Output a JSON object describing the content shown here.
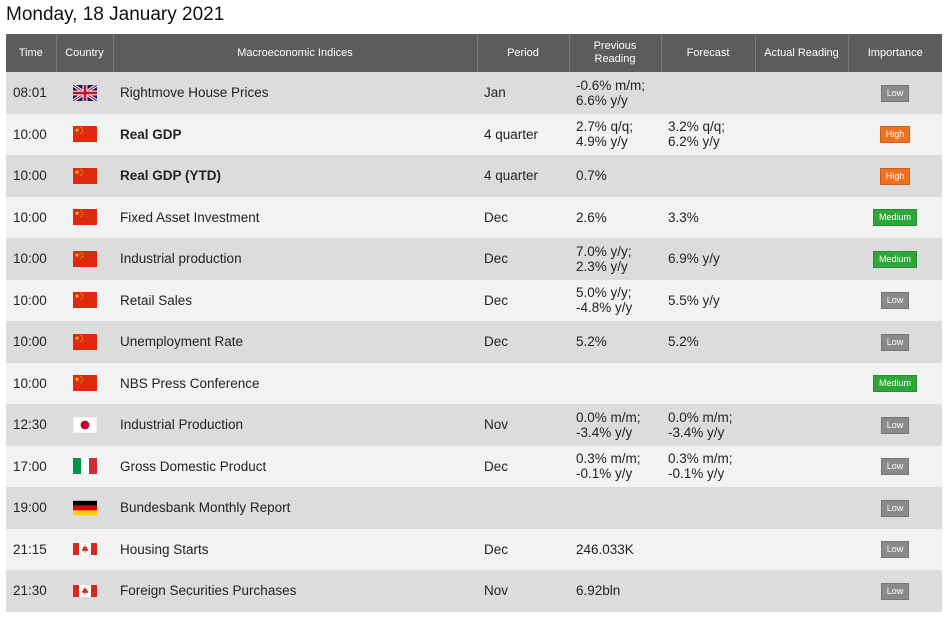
{
  "title": "Monday, 18 January 2021",
  "columns": {
    "time": "Time",
    "country": "Country",
    "indices": "Macroeconomic Indices",
    "period": "Period",
    "previous_line1": "Previous",
    "previous_line2": "Reading",
    "forecast": "Forecast",
    "actual": "Actual Reading",
    "importance": "Importance"
  },
  "colors": {
    "header_bg": "#5c5c5c",
    "row_odd": "#dcdcdc",
    "row_even": "#f2f2f2",
    "badge_low": "#8a8a8a",
    "badge_high": "#f07020",
    "badge_medium": "#2fa63a"
  },
  "rows": [
    {
      "time": "08:01",
      "flag": "uk-flag-icon",
      "indicator": "Rightmove House Prices",
      "bold": false,
      "period": "Jan",
      "previous": [
        "-0.6% m/m;",
        "6.6% y/y"
      ],
      "forecast": [],
      "actual": "",
      "importance": "Low",
      "level": "low"
    },
    {
      "time": "10:00",
      "flag": "china-flag-icon",
      "indicator": "Real GDP",
      "bold": true,
      "period": "4 quarter",
      "previous": [
        "2.7% q/q;",
        "4.9% y/y"
      ],
      "forecast": [
        "3.2% q/q;",
        "6.2% y/y"
      ],
      "actual": "",
      "importance": "High",
      "level": "high"
    },
    {
      "time": "10:00",
      "flag": "china-flag-icon",
      "indicator": "Real GDP (YTD)",
      "bold": true,
      "period": "4 quarter",
      "previous": [
        "0.7%"
      ],
      "forecast": [],
      "actual": "",
      "importance": "High",
      "level": "high"
    },
    {
      "time": "10:00",
      "flag": "china-flag-icon",
      "indicator": "Fixed Asset Investment",
      "bold": false,
      "period": "Dec",
      "previous": [
        "2.6%"
      ],
      "forecast": [
        "3.3%"
      ],
      "actual": "",
      "importance": "Medium",
      "level": "medium"
    },
    {
      "time": "10:00",
      "flag": "china-flag-icon",
      "indicator": "Industrial production",
      "bold": false,
      "period": "Dec",
      "previous": [
        "7.0% y/y;",
        "2.3% y/y"
      ],
      "forecast": [
        "6.9% y/y"
      ],
      "actual": "",
      "importance": "Medium",
      "level": "medium"
    },
    {
      "time": "10:00",
      "flag": "china-flag-icon",
      "indicator": "Retail Sales",
      "bold": false,
      "period": "Dec",
      "previous": [
        "5.0% y/y;",
        "-4.8% y/y"
      ],
      "forecast": [
        "5.5% y/y"
      ],
      "actual": "",
      "importance": "Low",
      "level": "low"
    },
    {
      "time": "10:00",
      "flag": "china-flag-icon",
      "indicator": "Unemployment Rate",
      "bold": false,
      "period": "Dec",
      "previous": [
        "5.2%"
      ],
      "forecast": [
        "5.2%"
      ],
      "actual": "",
      "importance": "Low",
      "level": "low"
    },
    {
      "time": "10:00",
      "flag": "china-flag-icon",
      "indicator": "NBS Press Conference",
      "bold": false,
      "period": "",
      "previous": [],
      "forecast": [],
      "actual": "",
      "importance": "Medium",
      "level": "medium"
    },
    {
      "time": "12:30",
      "flag": "japan-flag-icon",
      "indicator": "Industrial Production",
      "bold": false,
      "period": "Nov",
      "previous": [
        "0.0% m/m;",
        "-3.4% y/y"
      ],
      "forecast": [
        "0.0% m/m;",
        "-3.4% y/y"
      ],
      "actual": "",
      "importance": "Low",
      "level": "low"
    },
    {
      "time": "17:00",
      "flag": "italy-flag-icon",
      "indicator": "Gross Domestic Product",
      "bold": false,
      "period": "Dec",
      "previous": [
        "0.3% m/m;",
        "-0.1% y/y"
      ],
      "forecast": [
        "0.3% m/m;",
        "-0.1% y/y"
      ],
      "actual": "",
      "importance": "Low",
      "level": "low"
    },
    {
      "time": "19:00",
      "flag": "germany-flag-icon",
      "indicator": "Bundesbank Monthly Report",
      "bold": false,
      "period": "",
      "previous": [],
      "forecast": [],
      "actual": "",
      "importance": "Low",
      "level": "low"
    },
    {
      "time": "21:15",
      "flag": "canada-flag-icon",
      "indicator": "Housing Starts",
      "bold": false,
      "period": "Dec",
      "previous": [
        "246.033K"
      ],
      "forecast": [],
      "actual": "",
      "importance": "Low",
      "level": "low"
    },
    {
      "time": "21:30",
      "flag": "canada-flag-icon",
      "indicator": "Foreign Securities Purchases",
      "bold": false,
      "period": "Nov",
      "previous": [
        "6.92bln"
      ],
      "forecast": [],
      "actual": "",
      "importance": "Low",
      "level": "low"
    }
  ]
}
